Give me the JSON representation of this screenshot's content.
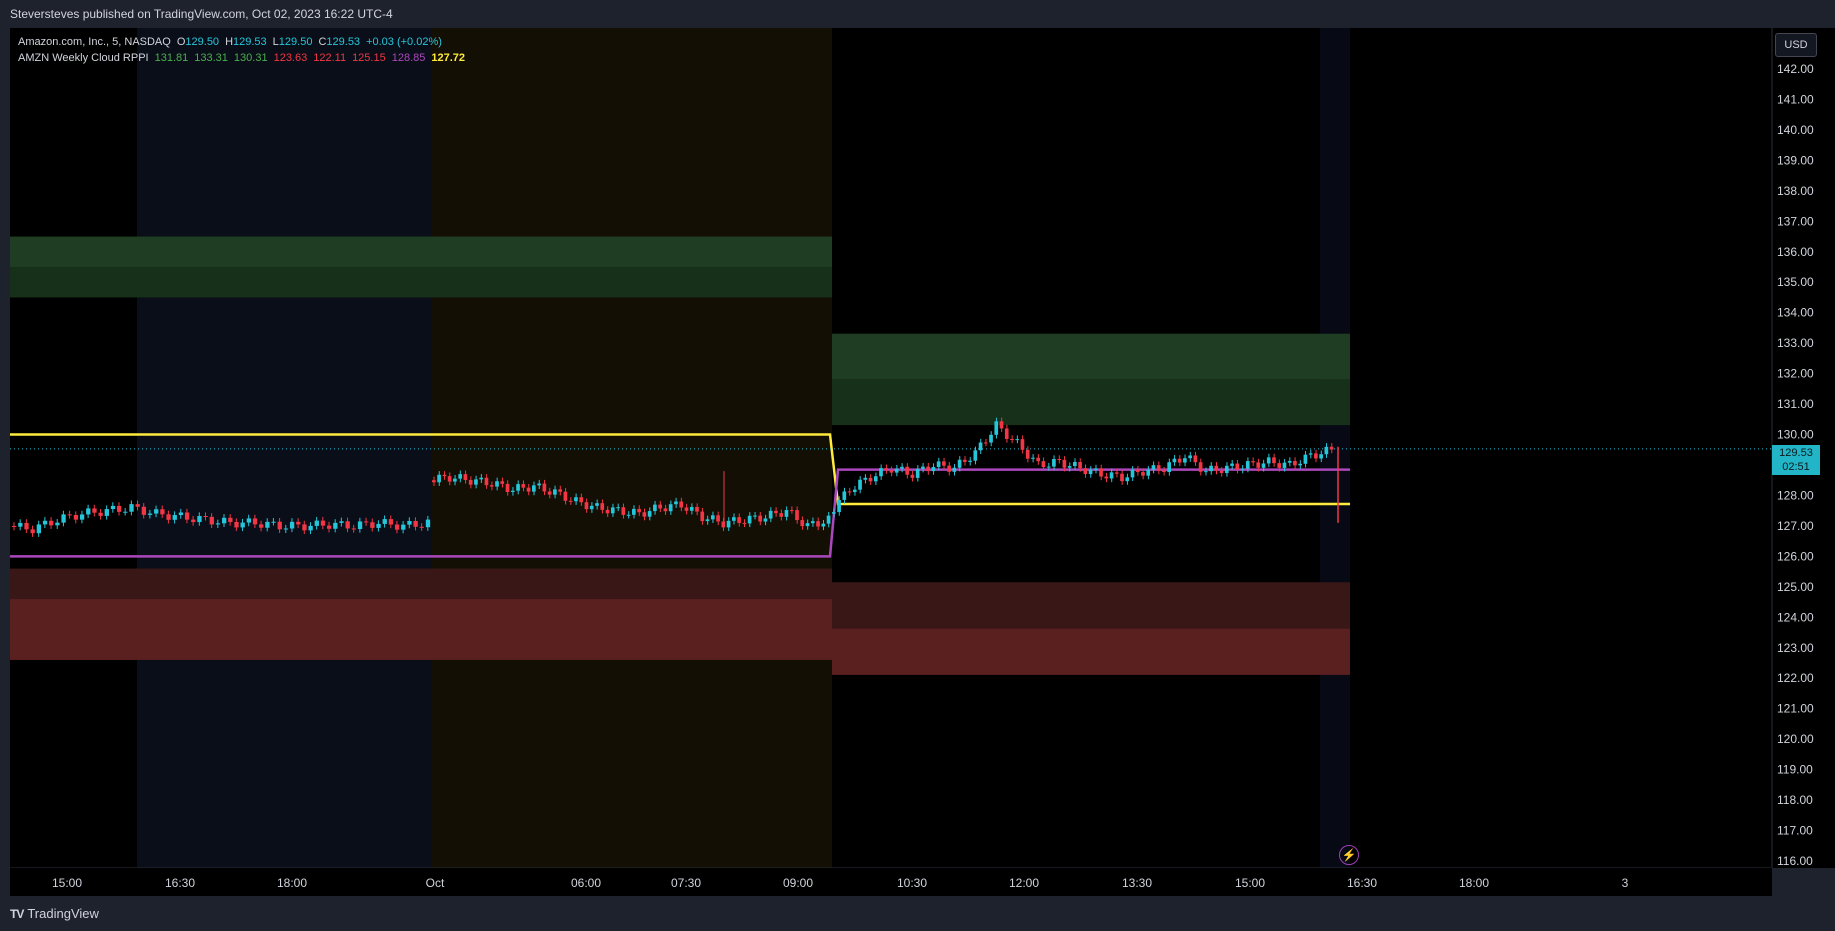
{
  "header": {
    "published": "Steversteves published on TradingView.com, Oct 02, 2023 16:22 UTC-4"
  },
  "legend": {
    "symbol": "Amazon.com, Inc., 5, NASDAQ",
    "open_label": "O",
    "open": "129.50",
    "high_label": "H",
    "high": "129.53",
    "low_label": "L",
    "low": "129.50",
    "close_label": "C",
    "close": "129.53",
    "change": "+0.03 (+0.02%)",
    "indicator": "AMZN Weekly Cloud RPPI",
    "indicator_values": [
      {
        "value": "131.81",
        "color": "#4caf50"
      },
      {
        "value": "133.31",
        "color": "#4caf50"
      },
      {
        "value": "130.31",
        "color": "#4caf50"
      },
      {
        "value": "123.63",
        "color": "#f23645"
      },
      {
        "value": "122.11",
        "color": "#f23645"
      },
      {
        "value": "125.15",
        "color": "#f23645"
      },
      {
        "value": "128.85",
        "color": "#ab47bc"
      },
      {
        "value": "127.72",
        "color": "#ffeb3b"
      }
    ]
  },
  "currency_button": "USD",
  "last_price": {
    "price": "129.53",
    "countdown": "02:51"
  },
  "footer": {
    "brand": "TradingView",
    "logo": "TV"
  },
  "icons": {
    "replay": "lightning-bolt-icon"
  },
  "colors": {
    "up": "#26c6da",
    "down": "#f23645",
    "yellow": "#ffeb3b",
    "purple": "#ab47bc",
    "green_band": "#1b3a20",
    "red_band": "#4a1c1c",
    "bg": "#000000"
  },
  "chart_data": {
    "type": "candlestick",
    "y_ticks": [
      142,
      141,
      140,
      139,
      138,
      137,
      136,
      135,
      134,
      133,
      132,
      131,
      130,
      129,
      128,
      127,
      126,
      125,
      124,
      123,
      122,
      121,
      120,
      119,
      118,
      117,
      116
    ],
    "ylim": [
      115.8,
      142.6
    ],
    "x_ticks": [
      "15:00",
      "16:30",
      "18:00",
      "Oct",
      "06:00",
      "07:30",
      "09:00",
      "10:30",
      "12:00",
      "13:30",
      "15:00",
      "16:30",
      "18:00",
      "3"
    ],
    "sessions": [
      {
        "name": "previous-week",
        "resistance_band": [
          134.5,
          136.5
        ],
        "resistance_mid": 135.5,
        "support_band": [
          122.6,
          125.6
        ],
        "support_mid": 124.6,
        "pivot": 130.0,
        "purple_line": 126.0
      },
      {
        "name": "current-week",
        "resistance_band": [
          130.31,
          133.31
        ],
        "resistance_mid": 131.81,
        "support_band": [
          122.11,
          125.15
        ],
        "support_mid": 123.63,
        "pivot": 127.72,
        "purple_line": 128.85
      }
    ],
    "price_segments": [
      {
        "session": "previous-day-after-hours",
        "close_path": [
          127.0,
          126.9,
          127.2,
          127.4,
          127.5,
          127.6,
          127.4,
          127.3,
          127.2,
          127.1,
          127.1,
          127.0,
          127.0,
          127.05,
          127.0,
          127.1,
          127.0,
          127.1
        ]
      },
      {
        "session": "premarket",
        "close_path": [
          128.5,
          128.6,
          128.5,
          128.4,
          128.2,
          128.3,
          128.1,
          127.8,
          127.6,
          127.5,
          127.4,
          127.6,
          127.7,
          127.3,
          127.1,
          127.2,
          127.3,
          127.5,
          127.0,
          127.2
        ]
      },
      {
        "session": "regular",
        "close_path": [
          127.4,
          128.2,
          128.6,
          128.9,
          128.7,
          129.0,
          128.9,
          129.4,
          130.3,
          129.7,
          129.0,
          129.1,
          128.9,
          128.7,
          128.6,
          128.8,
          128.9,
          129.3,
          128.8,
          128.9,
          129.0,
          129.1,
          129.0,
          129.3,
          129.5
        ]
      }
    ],
    "last_close": 129.53
  }
}
